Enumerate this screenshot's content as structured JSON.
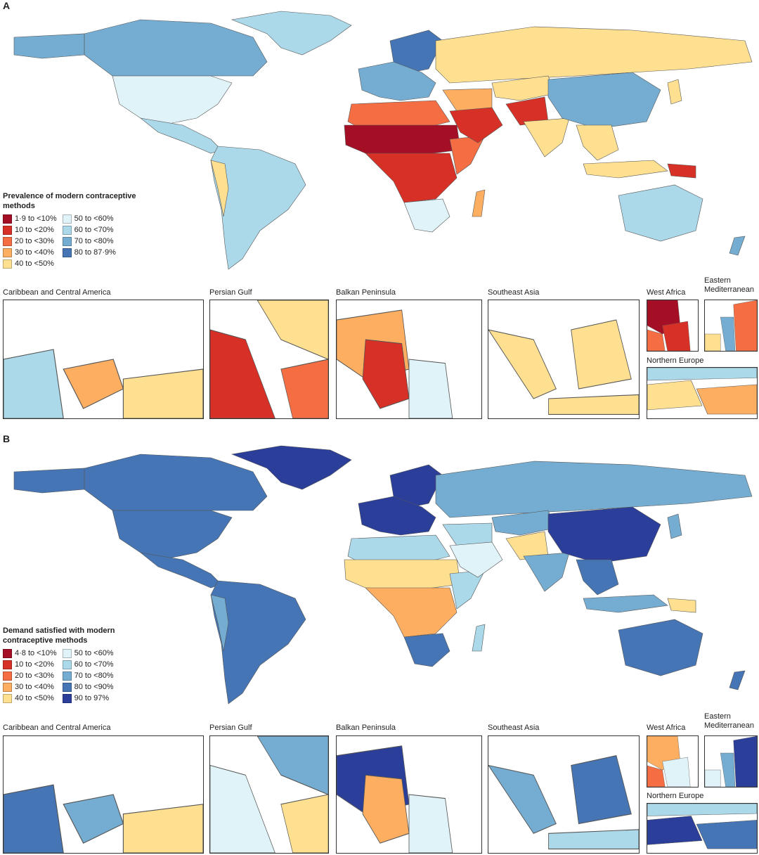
{
  "panels": [
    {
      "letter": "A",
      "legend": {
        "title": "Prevalence of modern contraceptive methods",
        "items": [
          {
            "label": "1·9 to <10%",
            "color": "#a50f26"
          },
          {
            "label": "10 to <20%",
            "color": "#d73027"
          },
          {
            "label": "20 to <30%",
            "color": "#f46d43"
          },
          {
            "label": "30 to <40%",
            "color": "#fdae61"
          },
          {
            "label": "40 to <50%",
            "color": "#fee090"
          },
          {
            "label": "50 to <60%",
            "color": "#e0f3f8"
          },
          {
            "label": "60 to <70%",
            "color": "#abd9e9"
          },
          {
            "label": "70 to <80%",
            "color": "#74add1"
          },
          {
            "label": "80 to 87·9%",
            "color": "#4575b4"
          }
        ]
      },
      "regions": {
        "north_america": "#e0f3f8",
        "canada": "#74add1",
        "greenland": "#abd9e9",
        "central_america": "#abd9e9",
        "south_america": "#abd9e9",
        "andes": "#fee090",
        "europe": "#74add1",
        "scandinavia": "#4575b4",
        "russia": "#fee090",
        "north_africa": "#f46d43",
        "sahel": "#a50f26",
        "central_africa": "#d73027",
        "east_africa": "#f46d43",
        "southern_africa": "#e0f3f8",
        "madagascar": "#fdae61",
        "middle_east": "#fdae61",
        "arabia": "#d73027",
        "central_asia": "#fee090",
        "afghanistan": "#d73027",
        "south_asia": "#fee090",
        "china": "#74add1",
        "southeast_asia": "#fee090",
        "indonesia": "#fee090",
        "png": "#d73027",
        "australia": "#abd9e9",
        "new_zealand": "#74add1",
        "japan": "#fee090"
      },
      "insets": [
        {
          "label": "Caribbean and Central America",
          "colors": [
            "#abd9e9",
            "#fdae61",
            "#fee090"
          ]
        },
        {
          "label": "Persian Gulf",
          "colors": [
            "#d73027",
            "#fee090",
            "#f46d43"
          ]
        },
        {
          "label": "Balkan Peninsula",
          "colors": [
            "#fdae61",
            "#d73027",
            "#e0f3f8"
          ]
        },
        {
          "label": "Southeast Asia",
          "colors": [
            "#fee090",
            "#fee090",
            "#fee090"
          ]
        },
        {
          "label": "West Africa",
          "colors": [
            "#a50f26",
            "#d73027",
            "#f46d43"
          ]
        },
        {
          "label": "Eastern Mediterranean",
          "colors": [
            "#f46d43",
            "#74add1",
            "#fee090"
          ]
        },
        {
          "label": "Northern Europe",
          "colors": [
            "#fee090",
            "#fdae61",
            "#abd9e9"
          ]
        }
      ]
    },
    {
      "letter": "B",
      "legend": {
        "title": "Demand satisfied with modern contraceptive methods",
        "items": [
          {
            "label": "4·8 to <10%",
            "color": "#a50f26"
          },
          {
            "label": "10 to <20%",
            "color": "#d73027"
          },
          {
            "label": "20 to <30%",
            "color": "#f46d43"
          },
          {
            "label": "30 to <40%",
            "color": "#fdae61"
          },
          {
            "label": "40 to <50%",
            "color": "#fee090"
          },
          {
            "label": "50 to <60%",
            "color": "#e0f3f8"
          },
          {
            "label": "60 to <70%",
            "color": "#abd9e9"
          },
          {
            "label": "70 to <80%",
            "color": "#74add1"
          },
          {
            "label": "80 to <90%",
            "color": "#4575b4"
          },
          {
            "label": "90 to 97%",
            "color": "#2b3e9a"
          }
        ]
      },
      "regions": {
        "north_america": "#4575b4",
        "canada": "#4575b4",
        "greenland": "#2b3e9a",
        "central_america": "#4575b4",
        "south_america": "#4575b4",
        "andes": "#74add1",
        "europe": "#2b3e9a",
        "scandinavia": "#2b3e9a",
        "russia": "#74add1",
        "north_africa": "#abd9e9",
        "sahel": "#fee090",
        "central_africa": "#fdae61",
        "east_africa": "#abd9e9",
        "southern_africa": "#4575b4",
        "madagascar": "#abd9e9",
        "middle_east": "#abd9e9",
        "arabia": "#e0f3f8",
        "central_asia": "#74add1",
        "afghanistan": "#fee090",
        "south_asia": "#74add1",
        "china": "#2b3e9a",
        "southeast_asia": "#4575b4",
        "indonesia": "#74add1",
        "png": "#fee090",
        "australia": "#4575b4",
        "new_zealand": "#4575b4",
        "japan": "#74add1"
      },
      "insets": [
        {
          "label": "Caribbean and Central America",
          "colors": [
            "#4575b4",
            "#74add1",
            "#fee090"
          ]
        },
        {
          "label": "Persian Gulf",
          "colors": [
            "#e0f3f8",
            "#74add1",
            "#fee090"
          ]
        },
        {
          "label": "Balkan Peninsula",
          "colors": [
            "#2b3e9a",
            "#fdae61",
            "#e0f3f8"
          ]
        },
        {
          "label": "Southeast Asia",
          "colors": [
            "#74add1",
            "#4575b4",
            "#abd9e9"
          ]
        },
        {
          "label": "West Africa",
          "colors": [
            "#fdae61",
            "#e0f3f8",
            "#f46d43"
          ]
        },
        {
          "label": "Eastern Mediterranean",
          "colors": [
            "#2b3e9a",
            "#74add1",
            "#e0f3f8"
          ]
        },
        {
          "label": "Northern Europe",
          "colors": [
            "#2b3e9a",
            "#4575b4",
            "#abd9e9"
          ]
        }
      ]
    }
  ]
}
